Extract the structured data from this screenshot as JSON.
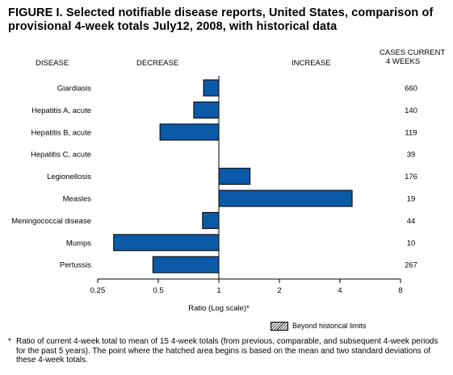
{
  "title": "FIGURE I. Selected notifiable disease reports, United States, comparison of provisional 4-week totals July12, 2008, with historical data",
  "headers": {
    "disease": "DISEASE",
    "decrease": "DECREASE",
    "increase": "INCREASE",
    "cases_line1": "CASES CURRENT",
    "cases_line2": "4 WEEKS"
  },
  "legend": {
    "label": "Beyond historical limits"
  },
  "footnote": {
    "marker": "*",
    "text": "Ratio of current 4-week total to mean of 15 4-week totals (from previous, comparable, and subsequent 4-week periods for the past 5 years). The point where the hatched area begins is based on the mean and two standard deviations of these 4-week totals."
  },
  "colors": {
    "bar": "#0b5aa8",
    "bar_stroke": "#000000"
  },
  "chart_data": {
    "type": "bar",
    "orientation": "horizontal",
    "xlabel": "Ratio (Log scale)*",
    "xscale": "log2",
    "xlim": [
      0.25,
      8
    ],
    "xticks": [
      0.25,
      0.5,
      1,
      2,
      4,
      8
    ],
    "xtick_labels": [
      "0.25",
      "0.5",
      "1",
      "2",
      "4",
      "8"
    ],
    "baseline": 1,
    "categories": [
      "Giardiasis",
      "Hepatitis A, acute",
      "Hepatitis B, acute",
      "Hepatitis C, acute",
      "Legionellosis",
      "Measles",
      "Meningococcal disease",
      "Mumps",
      "Pertussis"
    ],
    "values": [
      0.84,
      0.75,
      0.51,
      1.0,
      1.43,
      4.6,
      0.83,
      0.3,
      0.47
    ],
    "cases_current_4_weeks": [
      "660",
      "140",
      "119",
      "39",
      "176",
      "19",
      "44",
      "10",
      "267"
    ]
  }
}
